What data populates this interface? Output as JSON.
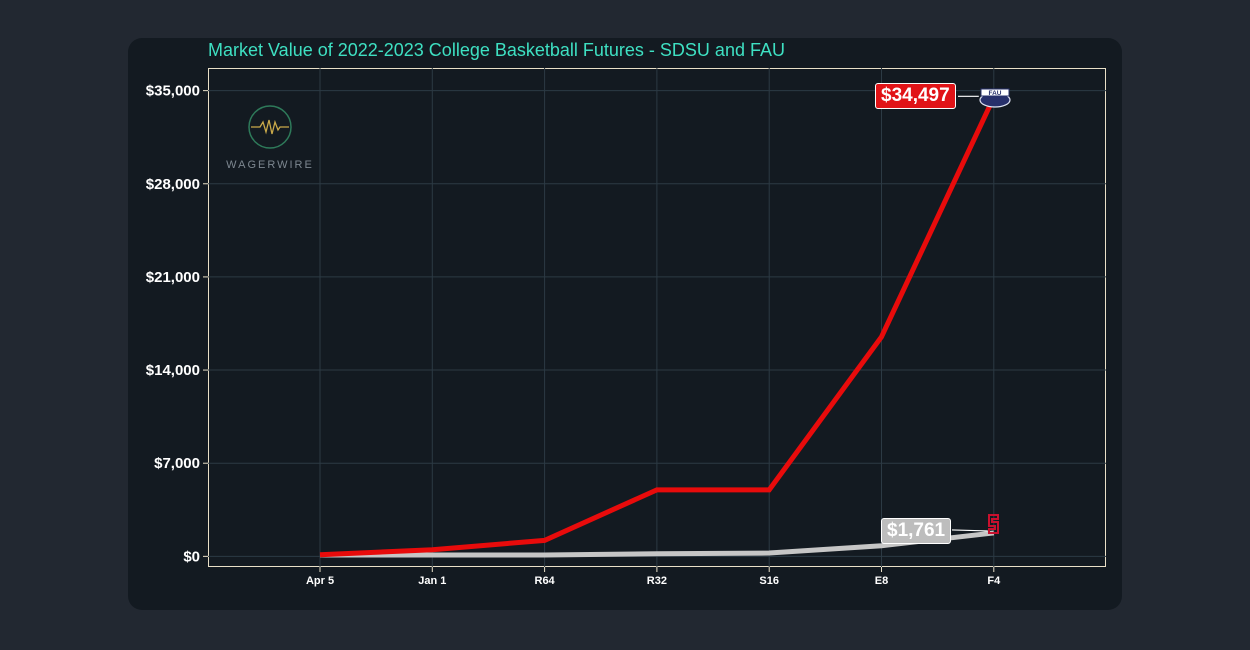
{
  "colors": {
    "fau": "#e80b0b",
    "sdsu": "#c6c6c6",
    "title": "#3ee0c2",
    "grid": "#2c3a44"
  },
  "chart_data": {
    "type": "line",
    "title": "Market Value of 2022-2023 College Basketball Futures - SDSU and FAU",
    "xlabel": "",
    "ylabel": "",
    "categories": [
      "Apr 5",
      "Jan 1",
      "R64",
      "R32",
      "S16",
      "E8",
      "F4"
    ],
    "ylim": [
      -800,
      36700
    ],
    "yticks": [
      0,
      7000,
      14000,
      21000,
      28000,
      35000
    ],
    "ytick_labels": [
      "$0",
      "$7,000",
      "$14,000",
      "$21,000",
      "$28,000",
      "$35,000"
    ],
    "grid": true,
    "series": [
      {
        "name": "FAU",
        "values": [
          120,
          500,
          1200,
          5000,
          5000,
          16500,
          34497
        ]
      },
      {
        "name": "SDSU",
        "values": [
          100,
          100,
          100,
          200,
          250,
          800,
          1761
        ]
      }
    ],
    "end_labels": [
      {
        "series": "FAU",
        "text": "$34,497",
        "icon": "fau-logo-icon"
      },
      {
        "series": "SDSU",
        "text": "$1,761",
        "icon": "sdsu-logo-icon"
      }
    ]
  },
  "watermark": {
    "text": "WAGERWIRE",
    "icon": "wagerwire-logo-icon"
  }
}
